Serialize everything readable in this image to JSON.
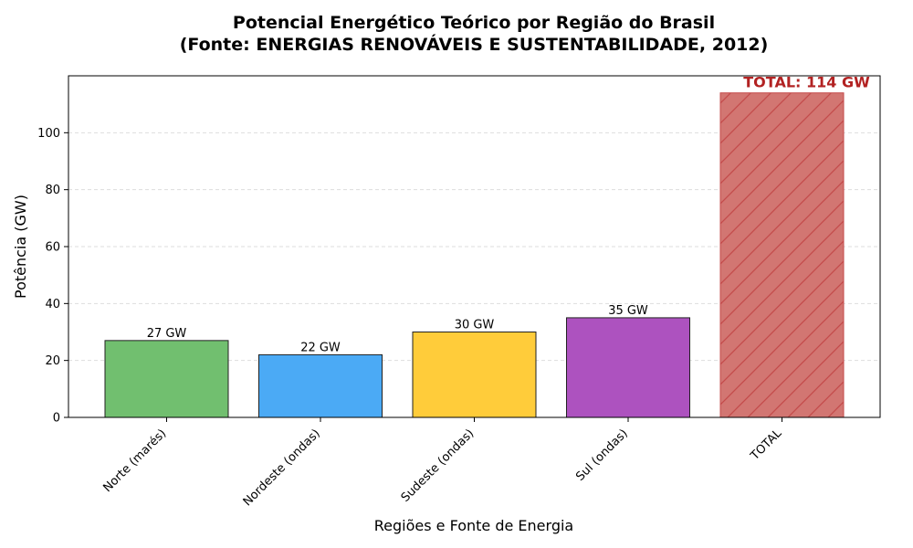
{
  "chart_data": {
    "type": "bar",
    "title_line1": "Potencial Energético Teórico por Região do Brasil",
    "title_line2": "(Fonte: ENERGIAS RENOVÁVEIS E SUSTENTABILIDADE, 2012)",
    "xlabel": "Regiões e Fonte de Energia",
    "ylabel": "Potência (GW)",
    "ylim": [
      0,
      120
    ],
    "yticks": [
      0,
      20,
      40,
      60,
      80,
      100
    ],
    "grid": true,
    "categories": [
      "Norte (marés)",
      "Nordeste (ondas)",
      "Sudeste (ondas)",
      "Sul (ondas)",
      "TOTAL"
    ],
    "values": [
      27,
      22,
      30,
      35,
      114
    ],
    "bar_labels": [
      "27 GW",
      "22 GW",
      "30 GW",
      "35 GW",
      "TOTAL: 114 GW"
    ],
    "colors": [
      "#71bf6f",
      "#4baaf5",
      "#ffcc3a",
      "#ad52bf",
      "#d27672"
    ],
    "edge_colors": [
      "#222222",
      "#222222",
      "#222222",
      "#222222",
      "#c44b4b"
    ],
    "total_label_color": "#b22222",
    "hatched": [
      false,
      false,
      false,
      false,
      true
    ]
  }
}
